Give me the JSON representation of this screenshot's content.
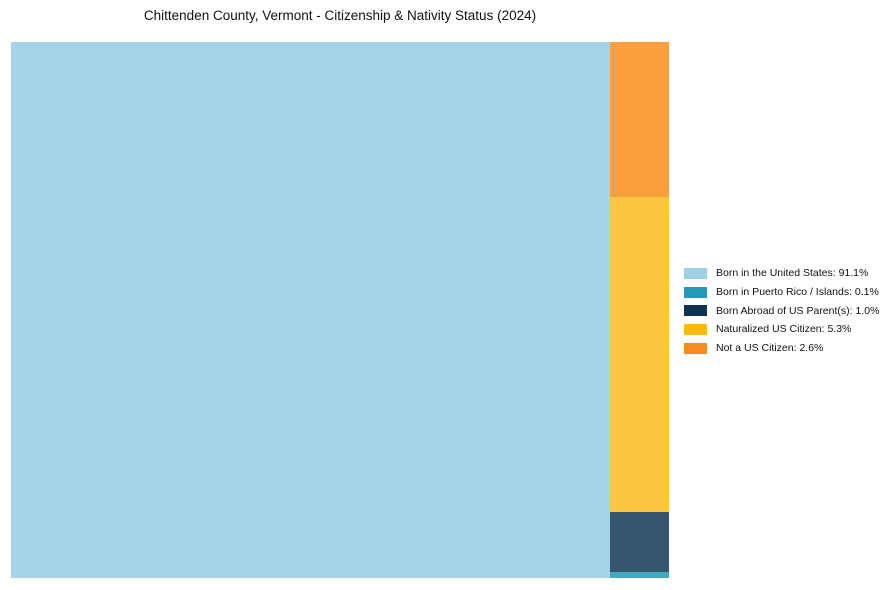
{
  "page": {
    "background_color": "#ffffff",
    "text_color": "#111111"
  },
  "chart_data": {
    "type": "treemap",
    "title": "Chittenden County, Vermont - Citizenship & Nativity Status (2024)",
    "unit": "%",
    "column_total": 9.0,
    "segments": [
      {
        "id": "born_us",
        "label": "Born in the United States",
        "value": 91.1,
        "display": "Born in the United States: 91.1%",
        "chart_color": "#a5d3ea",
        "legend_color": "#9ecfe5"
      },
      {
        "id": "puerto_rico",
        "label": "Born in Puerto Rico / Islands",
        "value": 0.1,
        "display": "Born in Puerto Rico / Islands: 0.1%",
        "chart_color": "#44a8bf",
        "legend_color": "#2598b6"
      },
      {
        "id": "born_abroad",
        "label": "Born Abroad of US Parent(s)",
        "value": 1.0,
        "display": "Born Abroad of US Parent(s): 1.0%",
        "chart_color": "#35566e",
        "legend_color": "#0e3350"
      },
      {
        "id": "naturalized",
        "label": "Naturalized US Citizen",
        "value": 5.3,
        "display": "Naturalized US Citizen: 5.3%",
        "chart_color": "#fdc63e",
        "legend_color": "#fdb813"
      },
      {
        "id": "not_citizen",
        "label": "Not a US Citizen",
        "value": 2.6,
        "display": "Not a US Citizen: 2.6%",
        "chart_color": "#f99f3d",
        "legend_color": "#f78b1f"
      }
    ],
    "layout": {
      "main_segment": "born_us",
      "column_order_top_to_bottom": [
        "not_citizen",
        "naturalized",
        "born_abroad",
        "puerto_rico"
      ],
      "legend_position": "right",
      "legend_order": [
        "born_us",
        "puerto_rico",
        "born_abroad",
        "naturalized",
        "not_citizen"
      ],
      "grid": false
    }
  }
}
